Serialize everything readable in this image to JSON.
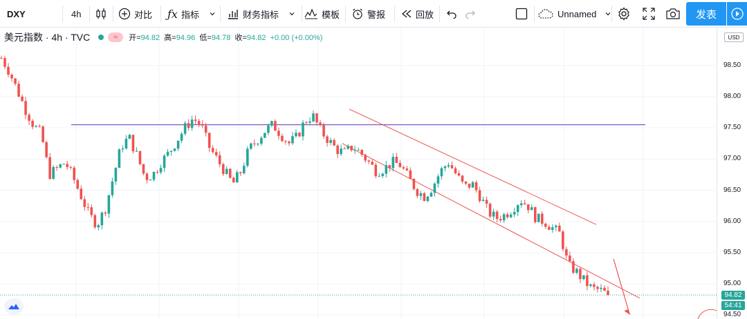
{
  "toolbar": {
    "symbol": "DXY",
    "interval": "4h",
    "compare_label": "对比",
    "indicators_label": "指标",
    "financials_label": "财务指标",
    "templates_label": "模板",
    "alert_label": "警报",
    "replay_label": "回放",
    "layout_name": "Unnamed",
    "publish_label": "发表"
  },
  "legend": {
    "title": "美元指数 · 4h · TVC",
    "open_label": "开=",
    "open": "94.82",
    "high_label": "高=",
    "high": "94.96",
    "low_label": "低=",
    "low": "94.78",
    "close_label": "收=",
    "close": "94.82",
    "change": "+0.00 (+0.00%)",
    "badge": "≈"
  },
  "axis": {
    "currency": "USD",
    "current_price": "94.82",
    "countdown": "54:41"
  },
  "colors": {
    "up": "#26a69a",
    "down": "#ef5350",
    "horizontal_line": "#7e57c2",
    "channel": "#ef5350",
    "accent": "#2196f3"
  },
  "chart_data": {
    "type": "candlestick",
    "symbol": "DXY",
    "interval": "4h",
    "ylim": [
      94.45,
      99.0
    ],
    "y_ticks": [
      94.5,
      95.0,
      95.5,
      96.0,
      96.5,
      97.0,
      97.5,
      98.0,
      98.5
    ],
    "grid": true,
    "last_price": 94.82,
    "close_path": [
      98.62,
      98.4,
      98.1,
      97.8,
      97.55,
      97.4,
      96.75,
      96.85,
      96.95,
      96.7,
      96.4,
      96.1,
      95.95,
      96.2,
      96.7,
      97.2,
      97.35,
      97.05,
      96.7,
      96.75,
      96.95,
      97.1,
      97.3,
      97.5,
      97.65,
      97.55,
      97.2,
      97.0,
      96.8,
      96.6,
      96.8,
      97.15,
      97.3,
      97.45,
      97.55,
      97.4,
      97.25,
      97.35,
      97.6,
      97.7,
      97.45,
      97.3,
      97.15,
      97.1,
      97.2,
      97.1,
      96.95,
      96.8,
      96.85,
      96.95,
      96.9,
      96.7,
      96.5,
      96.4,
      96.55,
      96.8,
      96.95,
      96.75,
      96.55,
      96.6,
      96.4,
      96.15,
      96.05,
      96.1,
      96.2,
      96.35,
      96.25,
      96.05,
      96.0,
      95.9,
      95.8,
      95.3,
      95.2,
      95.05,
      94.92,
      94.9,
      94.82
    ],
    "horizontal_line": 97.55,
    "channel_upper": [
      [
        97.8,
        95.95
      ]
    ],
    "channel_lower": [
      [
        97.25,
        94.77
      ]
    ]
  }
}
